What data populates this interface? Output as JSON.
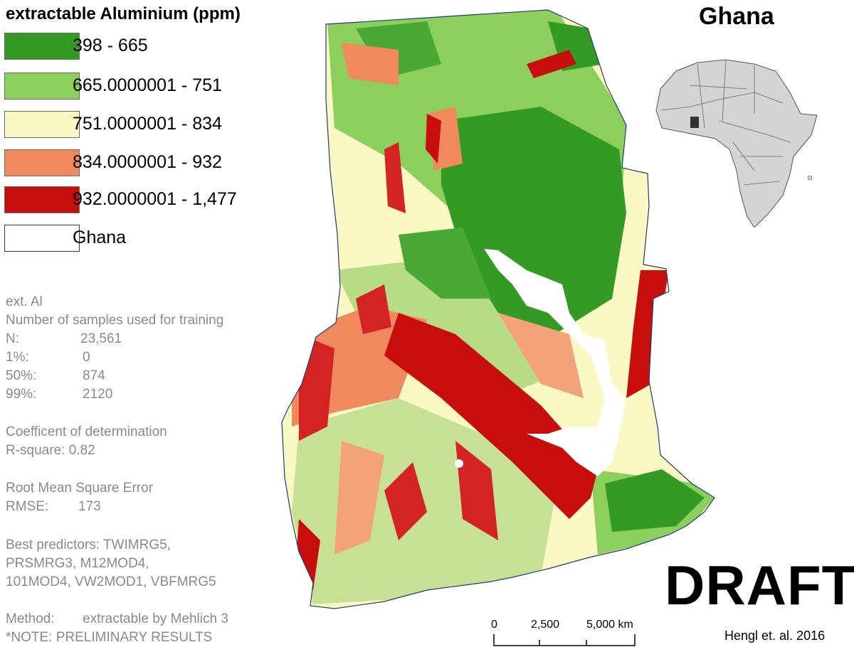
{
  "legend": {
    "title": "extractable Aluminium (ppm)",
    "items": [
      {
        "label": "398 - 665",
        "color": "#339a23"
      },
      {
        "label": "665.0000001 - 751",
        "color": "#8ccf5c"
      },
      {
        "label": "751.0000001 - 834",
        "color": "#fbf9c3"
      },
      {
        "label": "834.0000001 - 932",
        "color": "#f08a5e"
      },
      {
        "label": "932.0000001 - 1,477",
        "color": "#c80d0d"
      },
      {
        "label": "Ghana",
        "color": "#ffffff"
      }
    ]
  },
  "stats": {
    "variable": "ext. Al",
    "samples_heading": "Number of samples used for training",
    "n_label": "N:",
    "n_value": "23,561",
    "p1_label": "1%:",
    "p1_value": "0",
    "p50_label": "50%:",
    "p50_value": "874",
    "p99_label": "99%:",
    "p99_value": "2120",
    "r2_heading": "Coefficent of determination",
    "r2_line": "R-square: 0.82",
    "rmse_heading": "Root Mean Square Error",
    "rmse_label": "RMSE:",
    "rmse_value": "173",
    "predictors_line1": "Best predictors: TWIMRG5,",
    "predictors_line2": "PRSMRG3, M12MOD4,",
    "predictors_line3": "101MOD4, VW2MOD1, VBFMRG5",
    "method_label": "Method:",
    "method_value": "extractable by Mehlich 3",
    "note": "*NOTE: PRELIMINARY RESULTS"
  },
  "map": {
    "title": "Ghana",
    "watermark": "DRAFT",
    "credit": "Hengl et. al. 2016",
    "scale": {
      "labels": [
        "0",
        "2,500",
        "5,000 km"
      ]
    },
    "colors": {
      "outline": "#1f3b70",
      "lake": "#ffffff",
      "africa_fill": "#d4d4d4",
      "highlight": "#333333"
    }
  }
}
